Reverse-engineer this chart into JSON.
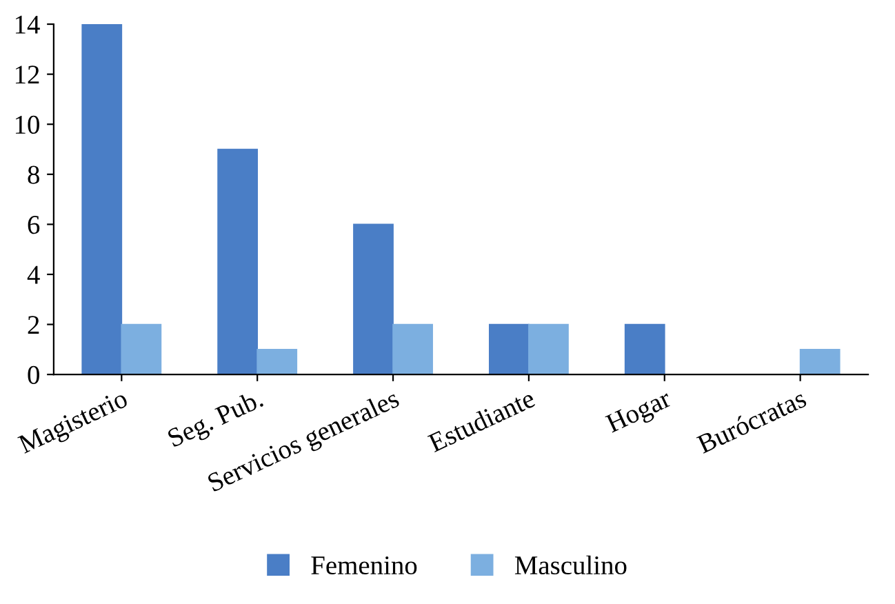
{
  "chart_data": {
    "type": "bar",
    "categories": [
      "Magisterio",
      "Seg. Pub.",
      "Servicios generales",
      "Estudiante",
      "Hogar",
      "Burócratas"
    ],
    "series": [
      {
        "name": "Femenino",
        "color": "#4a7ec6",
        "values": [
          14,
          9,
          6,
          2,
          2,
          0
        ]
      },
      {
        "name": "Masculino",
        "color": "#7cafe0",
        "values": [
          2,
          1,
          2,
          2,
          0,
          1
        ]
      }
    ],
    "ylim": [
      0,
      14
    ],
    "yticks": [
      0,
      2,
      4,
      6,
      8,
      10,
      12,
      14
    ],
    "grid": false,
    "legend": "bottom"
  }
}
